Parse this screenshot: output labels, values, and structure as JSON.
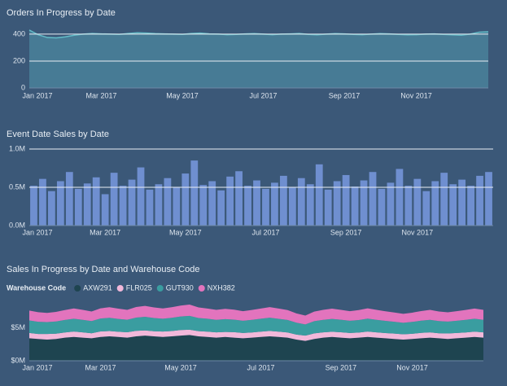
{
  "chart_data": [
    {
      "type": "area",
      "title": "Orders In Progress by Date",
      "categories": [
        "Jan 2017",
        null,
        null,
        null,
        null,
        null,
        null,
        null,
        "Mar 2017",
        null,
        null,
        null,
        null,
        null,
        null,
        null,
        null,
        "May 2017",
        null,
        null,
        null,
        null,
        null,
        null,
        null,
        null,
        "Jul 2017",
        null,
        null,
        null,
        null,
        null,
        null,
        null,
        null,
        "Sep 2017",
        null,
        null,
        null,
        null,
        null,
        null,
        null,
        "Nov 2017",
        null,
        null,
        null,
        null,
        null,
        null,
        null,
        null
      ],
      "values": [
        430,
        395,
        375,
        372,
        380,
        392,
        400,
        405,
        402,
        400,
        398,
        405,
        410,
        408,
        404,
        402,
        400,
        398,
        405,
        408,
        402,
        400,
        396,
        398,
        402,
        404,
        400,
        396,
        400,
        402,
        405,
        398,
        395,
        400,
        404,
        402,
        398,
        396,
        400,
        404,
        402,
        398,
        395,
        396,
        400,
        402,
        398,
        395,
        392,
        400,
        415,
        418
      ],
      "color": "#497f98",
      "line_color": "#63bcc8",
      "ylim": [
        0,
        460
      ],
      "yticks": [
        0,
        200,
        400
      ],
      "grid": true
    },
    {
      "type": "bar",
      "title": "Event Date Sales by Date",
      "categories": [
        "Jan 2017",
        null,
        null,
        null,
        null,
        null,
        null,
        null,
        "Mar 2017",
        null,
        null,
        null,
        null,
        null,
        null,
        null,
        null,
        "May 2017",
        null,
        null,
        null,
        null,
        null,
        null,
        null,
        null,
        "Jul 2017",
        null,
        null,
        null,
        null,
        null,
        null,
        null,
        null,
        "Sep 2017",
        null,
        null,
        null,
        null,
        null,
        null,
        null,
        "Nov 2017",
        null,
        null,
        null,
        null,
        null,
        null,
        null,
        null
      ],
      "values": [
        520000,
        610000,
        450000,
        580000,
        700000,
        480000,
        550000,
        630000,
        410000,
        690000,
        520000,
        600000,
        760000,
        470000,
        540000,
        620000,
        500000,
        680000,
        850000,
        530000,
        580000,
        460000,
        640000,
        710000,
        520000,
        590000,
        480000,
        560000,
        650000,
        500000,
        620000,
        540000,
        800000,
        470000,
        580000,
        660000,
        510000,
        590000,
        700000,
        480000,
        560000,
        740000,
        520000,
        610000,
        450000,
        580000,
        690000,
        540000,
        600000,
        520000,
        650000,
        700000
      ],
      "color": "#6f8fd0",
      "ylim": [
        0,
        1000000
      ],
      "yticks": [
        {
          "value": 0,
          "label": "0.0M"
        },
        {
          "value": 500000,
          "label": "0.5M"
        },
        {
          "value": 1000000,
          "label": "1.0M"
        }
      ],
      "grid": true
    },
    {
      "type": "stacked_area",
      "title": "Sales In Progress by Date and Warehouse Code",
      "legend_title": "Warehouse Code",
      "categories": [
        "Jan 2017",
        null,
        null,
        null,
        null,
        null,
        null,
        null,
        "Mar 2017",
        null,
        null,
        null,
        null,
        null,
        null,
        null,
        null,
        "May 2017",
        null,
        null,
        null,
        null,
        null,
        null,
        null,
        null,
        "Jul 2017",
        null,
        null,
        null,
        null,
        null,
        null,
        null,
        null,
        "Sep 2017",
        null,
        null,
        null,
        null,
        null,
        null,
        null,
        "Nov 2017",
        null,
        null,
        null,
        null,
        null,
        null,
        null,
        null
      ],
      "series": [
        {
          "name": "AXW291",
          "color": "#1e4450",
          "values": [
            3400000,
            3300000,
            3200000,
            3300000,
            3500000,
            3600000,
            3500000,
            3400000,
            3600000,
            3700000,
            3600000,
            3500000,
            3700000,
            3800000,
            3700000,
            3600000,
            3700000,
            3800000,
            3900000,
            3700000,
            3600000,
            3500000,
            3600000,
            3500000,
            3400000,
            3500000,
            3600000,
            3700000,
            3600000,
            3500000,
            3200000,
            3000000,
            3300000,
            3500000,
            3600000,
            3500000,
            3400000,
            3500000,
            3600000,
            3500000,
            3400000,
            3300000,
            3200000,
            3300000,
            3400000,
            3500000,
            3400000,
            3300000,
            3400000,
            3500000,
            3600000,
            3500000
          ]
        },
        {
          "name": "FLR025",
          "color": "#f2b8da",
          "values": [
            800000,
            750000,
            850000,
            800000,
            780000,
            820000,
            800000,
            760000,
            840000,
            800000,
            790000,
            810000,
            830000,
            800000,
            770000,
            820000,
            800000,
            850000,
            800000,
            780000,
            810000,
            800000,
            760000,
            830000,
            800000,
            790000,
            810000,
            820000,
            800000,
            780000,
            760000,
            800000,
            840000,
            800000,
            790000,
            810000,
            800000,
            770000,
            830000,
            800000,
            790000,
            810000,
            800000,
            780000,
            820000,
            800000,
            760000,
            830000,
            800000,
            790000,
            810000,
            800000
          ]
        },
        {
          "name": "GUT930",
          "color": "#3a9da0",
          "values": [
            1900000,
            1850000,
            1800000,
            1850000,
            1900000,
            1950000,
            1900000,
            1850000,
            1950000,
            2000000,
            1950000,
            1900000,
            2000000,
            2050000,
            2000000,
            1950000,
            2000000,
            2050000,
            2100000,
            2000000,
            1950000,
            1900000,
            1950000,
            1900000,
            1850000,
            1900000,
            1950000,
            2000000,
            1950000,
            1900000,
            1800000,
            1700000,
            1850000,
            1900000,
            1950000,
            1900000,
            1850000,
            1900000,
            1950000,
            1900000,
            1850000,
            1800000,
            1750000,
            1800000,
            1850000,
            1900000,
            1850000,
            1800000,
            1850000,
            1900000,
            1950000,
            1900000
          ]
        },
        {
          "name": "NXH382",
          "color": "#e274bd",
          "values": [
            1500000,
            1450000,
            1400000,
            1450000,
            1500000,
            1550000,
            1500000,
            1450000,
            1550000,
            1600000,
            1550000,
            1500000,
            1600000,
            1650000,
            1600000,
            1550000,
            1600000,
            1650000,
            1700000,
            1600000,
            1550000,
            1500000,
            1550000,
            1500000,
            1450000,
            1500000,
            1550000,
            1600000,
            1550000,
            1500000,
            1400000,
            1350000,
            1450000,
            1500000,
            1550000,
            1500000,
            1450000,
            1500000,
            1550000,
            1500000,
            1450000,
            1400000,
            1350000,
            1400000,
            1450000,
            1500000,
            1450000,
            1400000,
            1450000,
            1500000,
            1550000,
            1500000
          ]
        }
      ],
      "ylim": [
        0,
        9000000
      ],
      "yticks": [
        {
          "value": 0,
          "label": "$0M"
        },
        {
          "value": 5000000,
          "label": "$5M"
        }
      ],
      "grid": false
    }
  ]
}
